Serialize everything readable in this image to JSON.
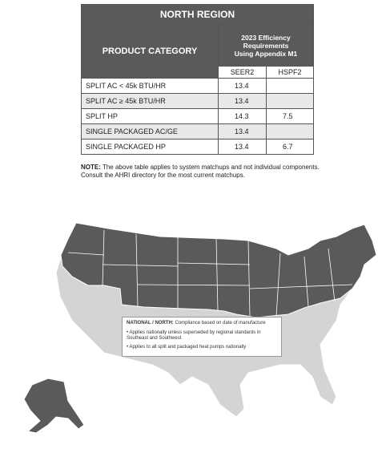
{
  "table": {
    "title": "NORTH REGION",
    "header": {
      "category": "PRODUCT CATEGORY",
      "requirements": "2023 Efficiency Requirements Using Appendix M1",
      "columns": [
        "SEER2",
        "HSPF2"
      ]
    },
    "rows": [
      {
        "category": "SPLIT AC < 45k BTU/HR",
        "seer2": "13.4"
      },
      {
        "category": "SPLIT AC ≥ 45k BTU/HR",
        "seer2": "13.4"
      },
      {
        "category": "SPLIT HP",
        "seer2": "14.3",
        "hspf2": "7.5"
      },
      {
        "category": "SINGLE PACKAGED AC/GE",
        "seer2": "13.4"
      },
      {
        "category": "SINGLE PACKAGED HP",
        "seer2": "13.4",
        "hspf2": "6.7"
      }
    ]
  },
  "note": {
    "label": "NOTE:",
    "text": "The above table applies to system matchups and not individual components. Consult the AHRI directory for the most current matchups."
  },
  "map_legend": {
    "title": "NATIONAL / NORTH:",
    "subtitle": "Compliance based on date of manufacture",
    "bullets": [
      "Applies nationally unless superseded by regional standards in Southeast and Southwest",
      "Applies to all split and packaged heat pumps nationally"
    ]
  }
}
